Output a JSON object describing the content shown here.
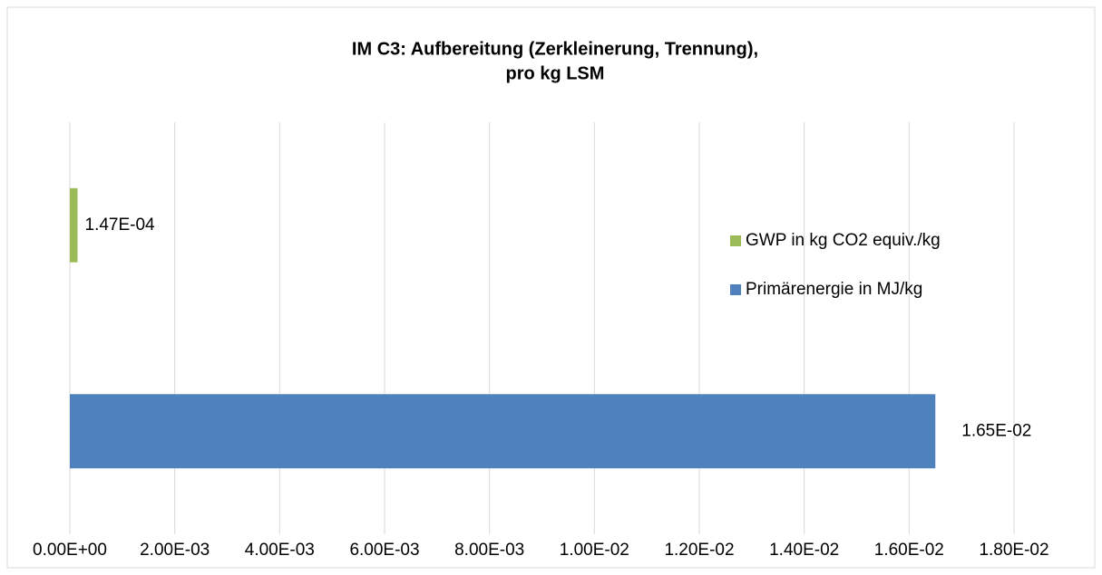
{
  "chart_data": {
    "type": "barh",
    "title": [
      "IM C3: Aufbereitung (Zerkleinerung, Trennung),",
      "pro kg LSM"
    ],
    "categories": [
      null,
      null
    ],
    "series": [
      {
        "name": "Primärenergie in MJ/kg",
        "color": "#4f81bd",
        "values": [
          0.0165,
          null
        ],
        "value_labels": [
          "1.65E-02",
          null
        ]
      },
      {
        "name": "GWP in kg CO2 equiv./kg",
        "color": "#9bbb59",
        "values": [
          null,
          0.000147
        ],
        "value_labels": [
          null,
          "1.47E-04"
        ]
      }
    ],
    "xlim": [
      0,
      0.018
    ],
    "xticks": [
      {
        "value": 0,
        "label": "0.00E+00"
      },
      {
        "value": 0.002,
        "label": "2.00E-03"
      },
      {
        "value": 0.004,
        "label": "4.00E-03"
      },
      {
        "value": 0.006,
        "label": "6.00E-03"
      },
      {
        "value": 0.008,
        "label": "8.00E-03"
      },
      {
        "value": 0.01,
        "label": "1.00E-02"
      },
      {
        "value": 0.012,
        "label": "1.20E-02"
      },
      {
        "value": 0.014,
        "label": "1.40E-02"
      },
      {
        "value": 0.016,
        "label": "1.60E-02"
      },
      {
        "value": 0.018,
        "label": "1.80E-02"
      }
    ],
    "grid": true,
    "legend": "right"
  }
}
